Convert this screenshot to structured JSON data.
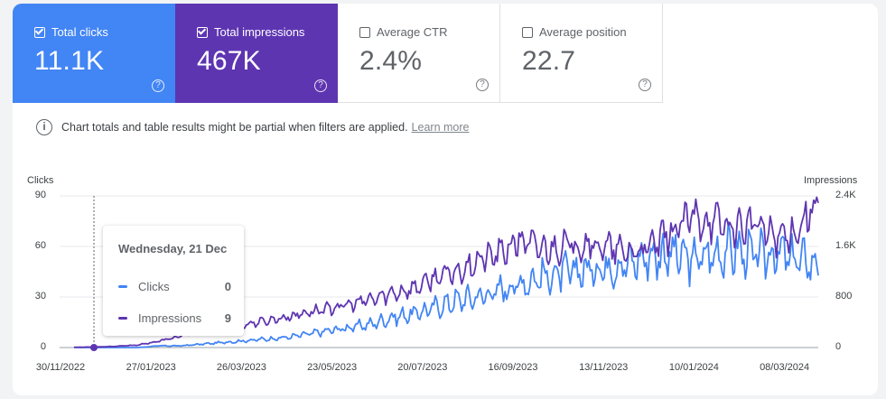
{
  "metrics": [
    {
      "label": "Total clicks",
      "value": "11.1K",
      "checked": true,
      "color": "#4285f4"
    },
    {
      "label": "Total impressions",
      "value": "467K",
      "checked": true,
      "color": "#5e35b1"
    },
    {
      "label": "Average CTR",
      "value": "2.4%",
      "checked": false
    },
    {
      "label": "Average position",
      "value": "22.7",
      "checked": false
    }
  ],
  "info": {
    "text": "Chart totals and table results might be partial when filters are applied.",
    "link": "Learn more"
  },
  "tooltip": {
    "date": "Wednesday, 21 Dec",
    "rows": [
      {
        "label": "Clicks",
        "value": "0"
      },
      {
        "label": "Impressions",
        "value": "9"
      }
    ]
  },
  "chart_data": {
    "type": "line",
    "ylabel_left": "Clicks",
    "ylabel_right": "Impressions",
    "y_left_ticks": [
      "0",
      "30",
      "60",
      "90"
    ],
    "y_right_ticks": [
      "0",
      "800",
      "1.6K",
      "2.4K"
    ],
    "x_ticks": [
      "30/11/2022",
      "27/01/2023",
      "26/03/2023",
      "23/05/2023",
      "20/07/2023",
      "16/09/2023",
      "13/11/2023",
      "10/01/2024",
      "08/03/2024"
    ],
    "ylim_left": [
      0,
      90
    ],
    "ylim_right": [
      0,
      2400
    ],
    "grid": true,
    "series": [
      {
        "name": "Clicks",
        "axis": "left",
        "color": "#4285f4",
        "values": [
          0,
          0,
          0,
          0,
          1,
          1,
          2,
          3,
          4,
          5,
          6,
          8,
          10,
          12,
          14,
          18,
          20,
          24,
          28,
          30,
          34,
          38,
          42,
          44,
          46,
          48,
          50,
          54,
          56,
          52,
          55,
          58,
          54,
          56,
          52,
          50
        ]
      },
      {
        "name": "Impressions",
        "axis": "right",
        "color": "#5e35b1",
        "values": [
          5,
          9,
          20,
          40,
          100,
          180,
          250,
          320,
          360,
          420,
          480,
          560,
          620,
          680,
          760,
          860,
          940,
          1100,
          1200,
          1380,
          1480,
          1700,
          1550,
          1600,
          1650,
          1580,
          1500,
          1560,
          1800,
          2050,
          2000,
          1900,
          1950,
          1750,
          1850,
          2350
        ]
      }
    ]
  }
}
